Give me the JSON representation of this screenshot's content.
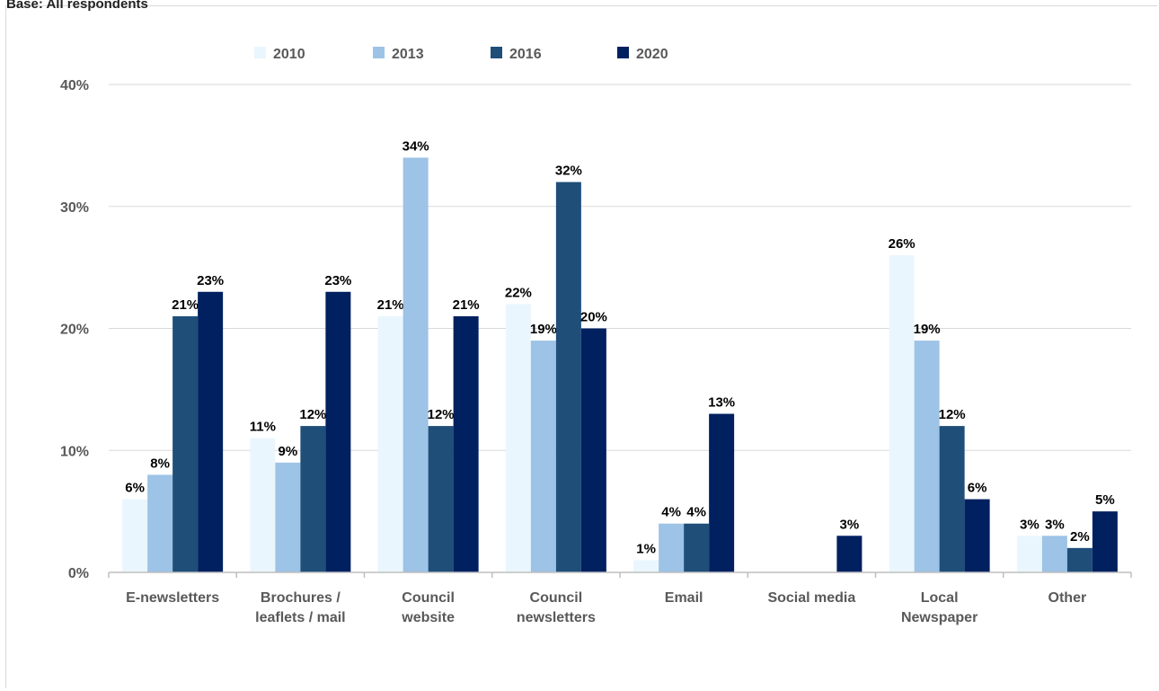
{
  "page": {
    "top_text": "Base: All respondents"
  },
  "chart_data": {
    "type": "bar",
    "categories": [
      [
        "E-newsletters"
      ],
      [
        "Brochures /",
        "leaflets / mail"
      ],
      [
        "Council",
        "website"
      ],
      [
        "Council",
        "newsletters"
      ],
      [
        "Email"
      ],
      [
        "Social media"
      ],
      [
        "Local",
        "Newspaper"
      ],
      [
        "Other"
      ]
    ],
    "series": [
      {
        "name": "2010",
        "color": "#eaf6fd",
        "values": [
          6,
          11,
          21,
          22,
          1,
          null,
          26,
          3
        ]
      },
      {
        "name": "2013",
        "color": "#9dc3e6",
        "values": [
          8,
          9,
          34,
          19,
          4,
          null,
          19,
          3
        ]
      },
      {
        "name": "2016",
        "color": "#1f4e79",
        "values": [
          21,
          12,
          12,
          32,
          4,
          null,
          12,
          2
        ]
      },
      {
        "name": "2020",
        "color": "#002060",
        "values": [
          23,
          23,
          21,
          20,
          13,
          3,
          6,
          5
        ]
      }
    ],
    "ylim": [
      0,
      40
    ],
    "yticks": [
      0,
      10,
      20,
      30,
      40
    ],
    "ytick_labels": [
      "0%",
      "10%",
      "20%",
      "30%",
      "40%"
    ],
    "value_suffix": "%",
    "grid": true,
    "legend": "top-center"
  }
}
